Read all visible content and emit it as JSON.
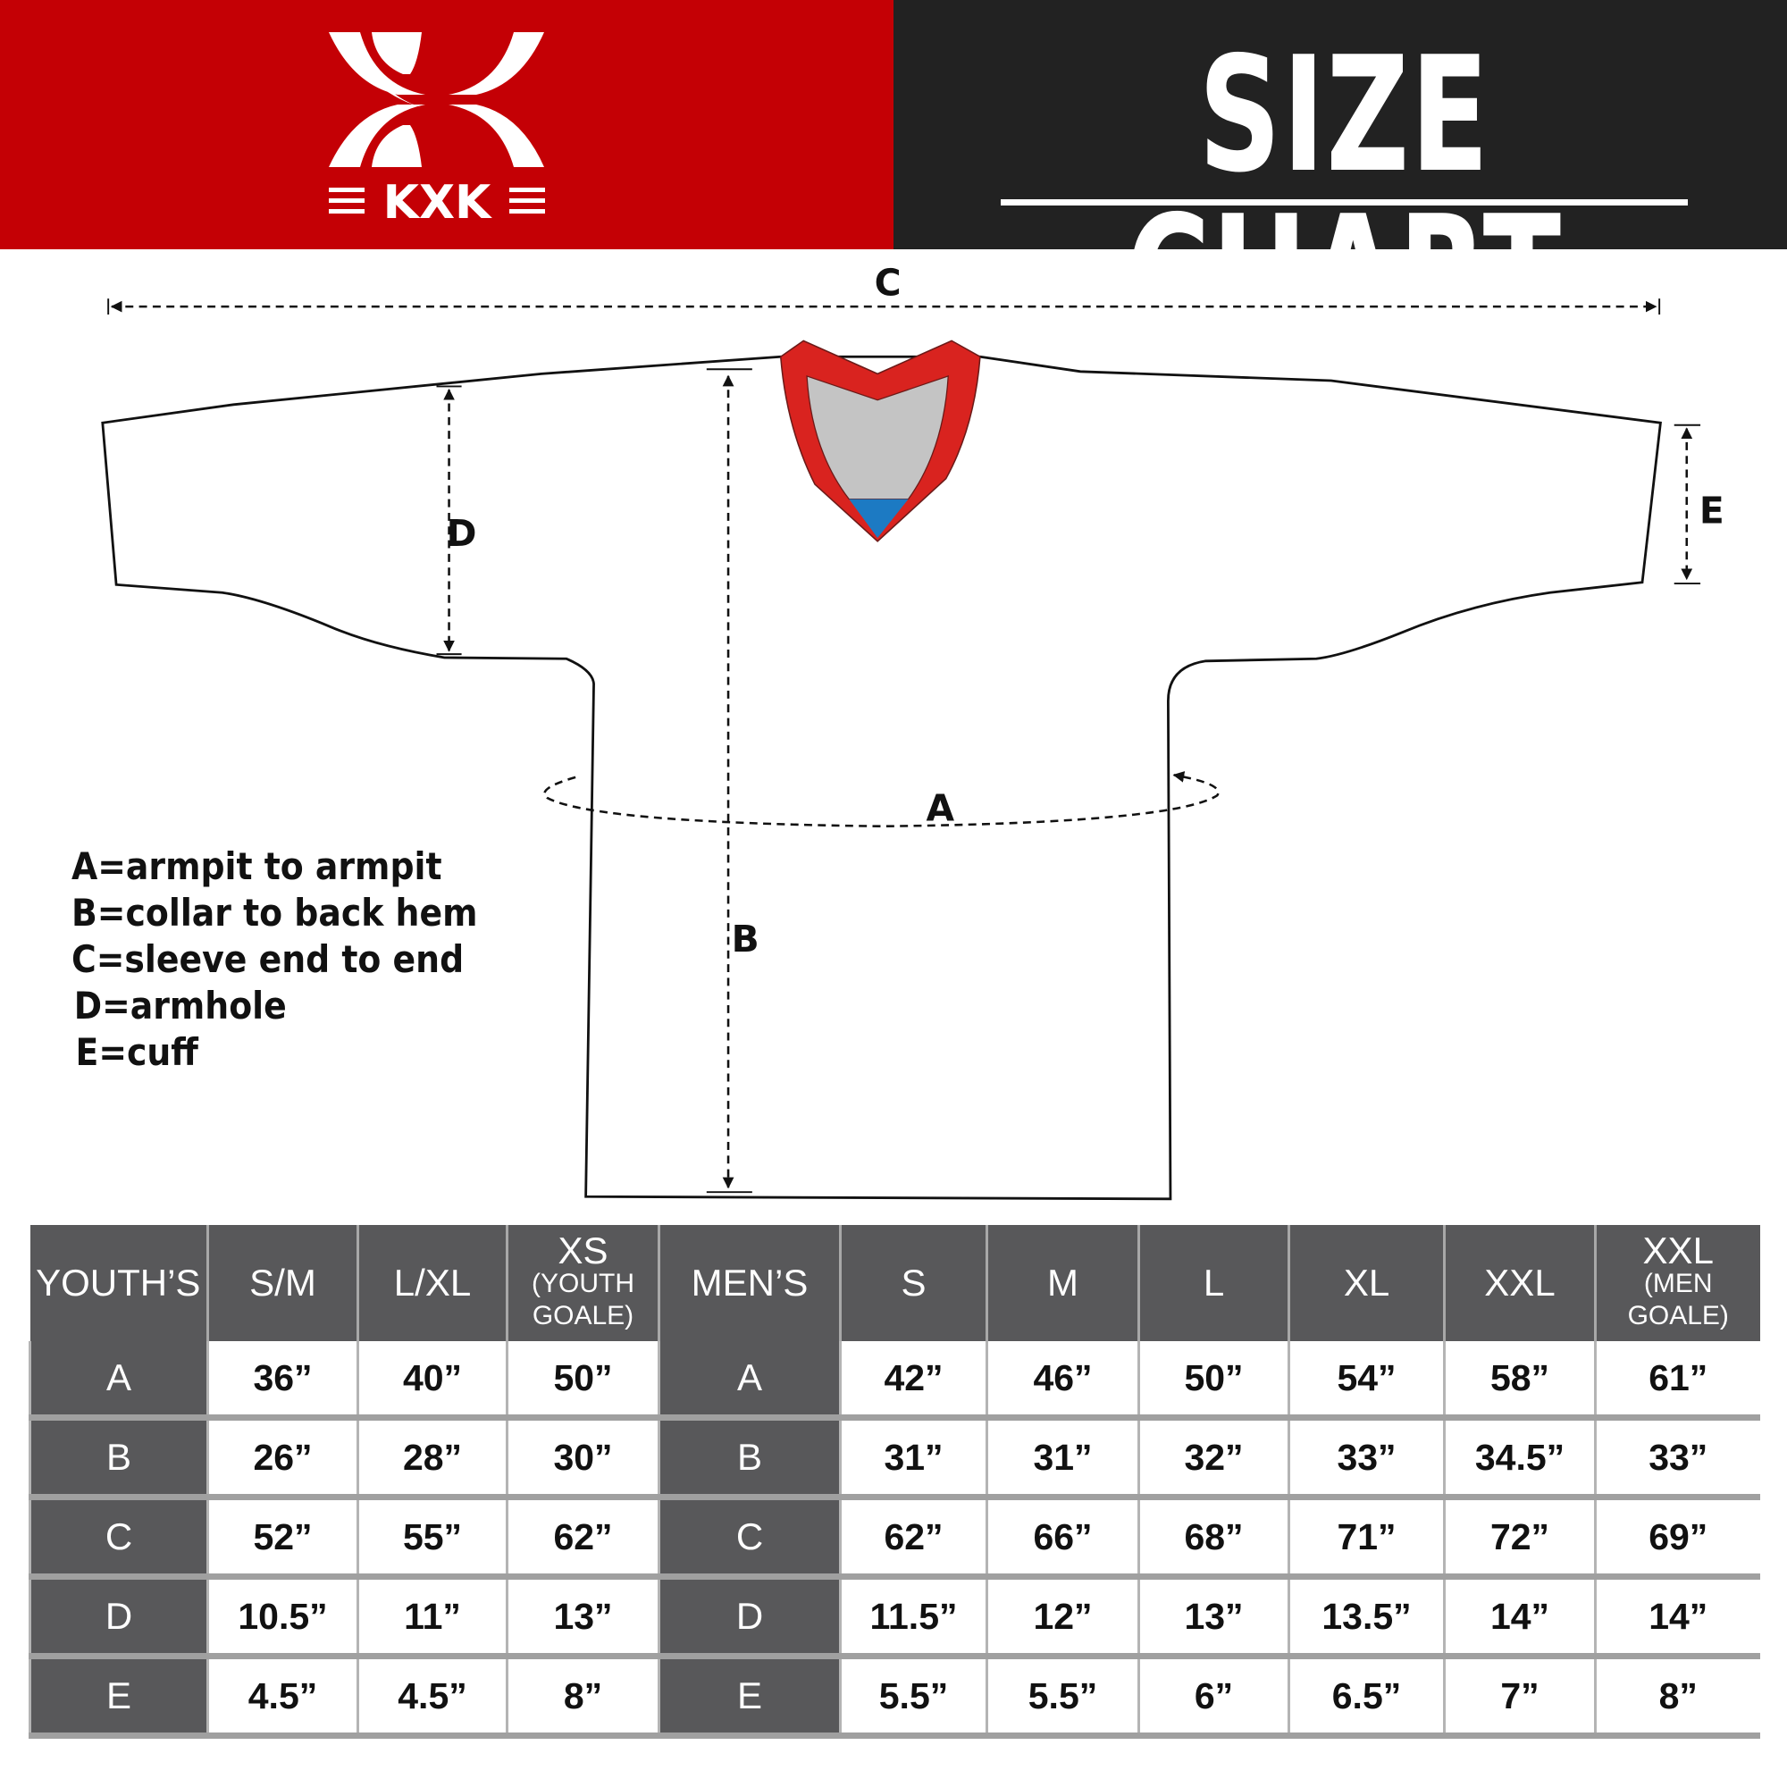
{
  "header": {
    "brand": "KXK",
    "title": "SIZE CHART",
    "colors": {
      "brand_red": "#c40005",
      "dark": "#222222",
      "table_header": "#58585a"
    }
  },
  "diagram": {
    "labels": {
      "a": "A",
      "b": "B",
      "c": "C",
      "d": "D",
      "e": "E"
    },
    "legend": [
      "A=armpit to armpit",
      "B=collar to back hem",
      "C=sleeve end to end",
      "D=armhole",
      "E=cuff"
    ]
  },
  "table": {
    "headers": [
      {
        "main": "YOUTH’S",
        "sub": ""
      },
      {
        "main": "S/M",
        "sub": ""
      },
      {
        "main": "L/XL",
        "sub": ""
      },
      {
        "main": "XS",
        "sub": "(YOUTH GOALE)"
      },
      {
        "main": "MEN’S",
        "sub": ""
      },
      {
        "main": "S",
        "sub": ""
      },
      {
        "main": "M",
        "sub": ""
      },
      {
        "main": "L",
        "sub": ""
      },
      {
        "main": "XL",
        "sub": ""
      },
      {
        "main": "XXL",
        "sub": ""
      },
      {
        "main": "XXL",
        "sub": "(MEN GOALE)"
      }
    ],
    "rows": [
      [
        "A",
        "36”",
        "40”",
        "50”",
        "A",
        "42”",
        "46”",
        "50”",
        "54”",
        "58”",
        "61”"
      ],
      [
        "B",
        "26”",
        "28”",
        "30”",
        "B",
        "31”",
        "31”",
        "32”",
        "33”",
        "34.5”",
        "33”"
      ],
      [
        "C",
        "52”",
        "55”",
        "62”",
        "C",
        "62”",
        "66”",
        "68”",
        "71”",
        "72”",
        "69”"
      ],
      [
        "D",
        "10.5”",
        "11”",
        "13”",
        "D",
        "11.5”",
        "12”",
        "13”",
        "13.5”",
        "14”",
        "14”"
      ],
      [
        "E",
        "4.5”",
        "4.5”",
        "8”",
        "E",
        "5.5”",
        "5.5”",
        "6”",
        "6.5”",
        "7”",
        "8”"
      ]
    ]
  }
}
